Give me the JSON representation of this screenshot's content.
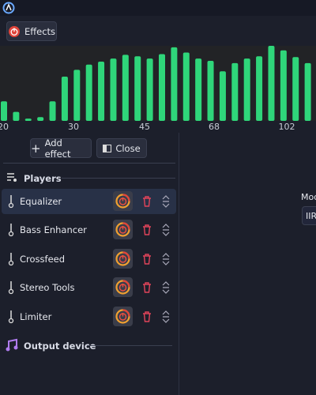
{
  "header": {
    "effects_button": "Effects"
  },
  "spectrum": {
    "axis_labels": [
      20,
      30,
      45,
      68,
      102
    ],
    "levels": [
      26,
      12,
      3,
      5,
      26,
      59,
      68,
      75,
      79,
      83,
      88,
      86,
      83,
      89,
      98,
      91,
      83,
      80,
      66,
      77,
      83,
      86,
      100,
      94,
      85,
      77
    ]
  },
  "sidebar": {
    "add_button": "Add effect",
    "close_button": "Close",
    "players_title": "Players",
    "effects": [
      "Equalizer",
      "Bass Enhancer",
      "Crossfeed",
      "Stereo Tools",
      "Limiter"
    ],
    "output_title": "Output device"
  },
  "main": {
    "mode_label": "Mod",
    "mode_value": "IIR"
  }
}
